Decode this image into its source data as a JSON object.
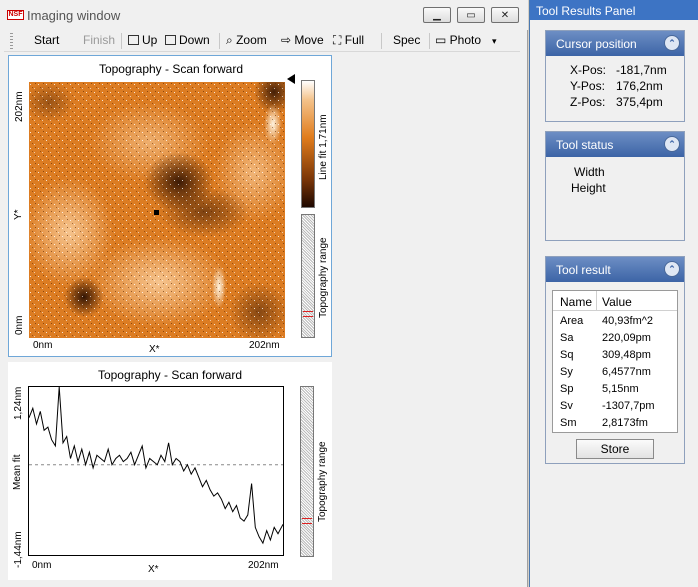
{
  "window": {
    "title": "Imaging window",
    "logo_text": "NSF"
  },
  "toolbar": {
    "start": "Start",
    "finish": "Finish",
    "up": "Up",
    "down": "Down",
    "zoom": "Zoom",
    "move": "Move",
    "full": "Full",
    "spec": "Spec",
    "photo": "Photo"
  },
  "image_panel": {
    "title": "Topography - Scan forward",
    "y_axis_top": "202nm",
    "y_axis_bottom": "0nm",
    "y_axis_label": "Y*",
    "x_axis_left": "0nm",
    "x_axis_right": "202nm",
    "x_axis_label": "X*",
    "colorbar_label": "Line fit 1,71nm",
    "range_label": "Topography range"
  },
  "line_panel": {
    "title": "Topography - Scan forward",
    "y_axis_top": "1,24nm",
    "y_axis_bottom": "-1,44nm",
    "y_axis_label": "Mean fit",
    "x_axis_left": "0nm",
    "x_axis_right": "202nm",
    "x_axis_label": "X*",
    "range_label": "Topography range"
  },
  "chart_data": {
    "type": "line",
    "title": "Topography - Scan forward",
    "xlabel": "X*",
    "ylabel": "Mean fit",
    "xlim": [
      0,
      202
    ],
    "ylim": [
      -1.44,
      1.24
    ],
    "x": [
      0,
      3,
      6,
      9,
      12,
      15,
      18,
      21,
      24,
      27,
      30,
      33,
      36,
      39,
      42,
      45,
      48,
      51,
      54,
      57,
      60,
      63,
      66,
      69,
      72,
      75,
      78,
      81,
      84,
      87,
      90,
      93,
      96,
      99,
      102,
      105,
      108,
      111,
      114,
      117,
      120,
      123,
      126,
      129,
      132,
      135,
      138,
      141,
      144,
      147,
      150,
      153,
      156,
      159,
      162,
      165,
      168,
      171,
      174,
      177,
      180,
      183,
      186,
      189,
      192,
      195,
      198,
      202
    ],
    "y": [
      0.75,
      0.9,
      0.65,
      0.85,
      0.55,
      0.6,
      0.4,
      0.3,
      1.24,
      0.35,
      0.45,
      0.1,
      0.3,
      0.05,
      0.25,
      0.0,
      0.2,
      -0.05,
      0.15,
      0.1,
      0.05,
      0.25,
      0.0,
      0.1,
      0.15,
      0.05,
      0.1,
      0.2,
      0.0,
      0.15,
      0.3,
      -0.05,
      0.1,
      0.05,
      0.0,
      0.15,
      0.05,
      0.35,
      0.0,
      0.1,
      0.05,
      -0.1,
      0.0,
      -0.15,
      -0.05,
      -0.2,
      -0.35,
      -0.25,
      -0.4,
      -0.5,
      -0.45,
      -0.55,
      -0.7,
      -0.6,
      -0.75,
      -0.65,
      -0.85,
      -0.9,
      -0.8,
      -0.3,
      -1.0,
      -1.15,
      -1.25,
      -1.05,
      -1.2,
      -1.0,
      -1.1,
      -0.95
    ],
    "reference_line": 0,
    "grid": false
  },
  "panel": {
    "title": "Tool Results Panel",
    "cursor": {
      "header": "Cursor position",
      "x_label": "X-Pos:",
      "x_val": "-181,7nm",
      "y_label": "Y-Pos:",
      "y_val": "176,2nm",
      "z_label": "Z-Pos:",
      "z_val": "375,4pm"
    },
    "status": {
      "header": "Tool status",
      "line1": "Width",
      "line2": "Height"
    },
    "result": {
      "header": "Tool result",
      "col_name": "Name",
      "col_value": "Value",
      "rows": [
        {
          "name": "Area",
          "value": "40,93fm^2"
        },
        {
          "name": "Sa",
          "value": "220,09pm"
        },
        {
          "name": "Sq",
          "value": "309,48pm"
        },
        {
          "name": "Sy",
          "value": "6,4577nm"
        },
        {
          "name": "Sp",
          "value": "5,15nm"
        },
        {
          "name": "Sv",
          "value": "-1307,7pm"
        },
        {
          "name": "Sm",
          "value": "2,8173fm"
        }
      ],
      "store": "Store"
    },
    "collapse_glyph": "⌃"
  },
  "colors": {
    "accent": "#3d74c4",
    "scan_orange": "#e07c1c",
    "frame_blue": "#6fa7d8"
  }
}
